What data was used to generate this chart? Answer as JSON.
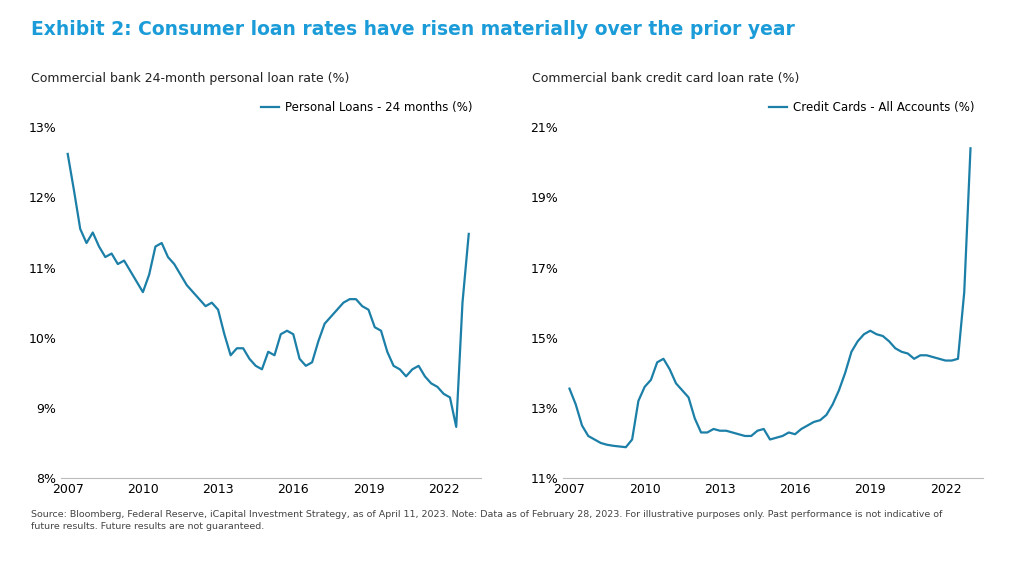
{
  "title": "Exhibit 2: Consumer loan rates have risen materially over the prior year",
  "title_color": "#1B9CD8",
  "subtitle_left": "Commercial bank 24-month personal loan rate (%)",
  "subtitle_right": "Commercial bank credit card loan rate (%)",
  "subtitle_color": "#222222",
  "line_color": "#1B7FA8",
  "background_color": "#FFFFFF",
  "source_text": "Source: Bloomberg, Federal Reserve, iCapital Investment Strategy, as of April 11, 2023. Note: Data as of February 28, 2023. For illustrative purposes only. Past performance is not indicative of\nfuture results. Future results are not guaranteed.",
  "legend_left": "Personal Loans - 24 months (%)",
  "legend_right": "Credit Cards - All Accounts (%)",
  "personal_loan_dates": [
    2007.0,
    2007.25,
    2007.5,
    2007.75,
    2008.0,
    2008.25,
    2008.5,
    2008.75,
    2009.0,
    2009.25,
    2009.5,
    2009.75,
    2010.0,
    2010.25,
    2010.5,
    2010.75,
    2011.0,
    2011.25,
    2011.5,
    2011.75,
    2012.0,
    2012.25,
    2012.5,
    2012.75,
    2013.0,
    2013.25,
    2013.5,
    2013.75,
    2014.0,
    2014.25,
    2014.5,
    2014.75,
    2015.0,
    2015.25,
    2015.5,
    2015.75,
    2016.0,
    2016.25,
    2016.5,
    2016.75,
    2017.0,
    2017.25,
    2017.5,
    2017.75,
    2018.0,
    2018.25,
    2018.5,
    2018.75,
    2019.0,
    2019.25,
    2019.5,
    2019.75,
    2020.0,
    2020.25,
    2020.5,
    2020.75,
    2021.0,
    2021.25,
    2021.5,
    2021.75,
    2022.0,
    2022.25,
    2022.5,
    2022.75,
    2023.0
  ],
  "personal_loan_values": [
    12.62,
    12.1,
    11.55,
    11.35,
    11.5,
    11.3,
    11.15,
    11.2,
    11.05,
    11.1,
    10.95,
    10.8,
    10.65,
    10.9,
    11.3,
    11.35,
    11.15,
    11.05,
    10.9,
    10.75,
    10.65,
    10.55,
    10.45,
    10.5,
    10.4,
    10.05,
    9.75,
    9.85,
    9.85,
    9.7,
    9.6,
    9.55,
    9.8,
    9.75,
    10.05,
    10.1,
    10.05,
    9.7,
    9.6,
    9.65,
    9.95,
    10.2,
    10.3,
    10.4,
    10.5,
    10.55,
    10.55,
    10.45,
    10.4,
    10.15,
    10.1,
    9.8,
    9.6,
    9.55,
    9.45,
    9.55,
    9.6,
    9.45,
    9.35,
    9.3,
    9.2,
    9.15,
    8.73,
    10.5,
    11.48
  ],
  "credit_card_dates": [
    2007.0,
    2007.25,
    2007.5,
    2007.75,
    2008.0,
    2008.25,
    2008.5,
    2008.75,
    2009.0,
    2009.25,
    2009.5,
    2009.75,
    2010.0,
    2010.25,
    2010.5,
    2010.75,
    2011.0,
    2011.25,
    2011.5,
    2011.75,
    2012.0,
    2012.25,
    2012.5,
    2012.75,
    2013.0,
    2013.25,
    2013.5,
    2013.75,
    2014.0,
    2014.25,
    2014.5,
    2014.75,
    2015.0,
    2015.25,
    2015.5,
    2015.75,
    2016.0,
    2016.25,
    2016.5,
    2016.75,
    2017.0,
    2017.25,
    2017.5,
    2017.75,
    2018.0,
    2018.25,
    2018.5,
    2018.75,
    2019.0,
    2019.25,
    2019.5,
    2019.75,
    2020.0,
    2020.25,
    2020.5,
    2020.75,
    2021.0,
    2021.25,
    2021.5,
    2021.75,
    2022.0,
    2022.25,
    2022.5,
    2022.75,
    2023.0
  ],
  "credit_card_values": [
    13.55,
    13.1,
    12.5,
    12.2,
    12.1,
    12.0,
    11.95,
    11.92,
    11.9,
    11.88,
    12.1,
    13.2,
    13.6,
    13.8,
    14.3,
    14.4,
    14.1,
    13.7,
    13.5,
    13.3,
    12.7,
    12.3,
    12.3,
    12.4,
    12.35,
    12.35,
    12.3,
    12.25,
    12.2,
    12.2,
    12.35,
    12.4,
    12.1,
    12.15,
    12.2,
    12.3,
    12.25,
    12.4,
    12.5,
    12.6,
    12.65,
    12.8,
    13.1,
    13.5,
    14.0,
    14.6,
    14.9,
    15.1,
    15.2,
    15.1,
    15.05,
    14.9,
    14.7,
    14.6,
    14.55,
    14.4,
    14.5,
    14.5,
    14.45,
    14.4,
    14.35,
    14.35,
    14.4,
    16.3,
    20.4
  ],
  "left_ylim": [
    8.0,
    13.5
  ],
  "left_yticks": [
    8,
    9,
    10,
    11,
    12,
    13
  ],
  "right_ylim": [
    11.0,
    22.0
  ],
  "right_yticks": [
    11,
    13,
    15,
    17,
    19,
    21
  ],
  "xlim": [
    2006.75,
    2023.5
  ],
  "xticks": [
    2007,
    2010,
    2013,
    2016,
    2019,
    2022
  ]
}
